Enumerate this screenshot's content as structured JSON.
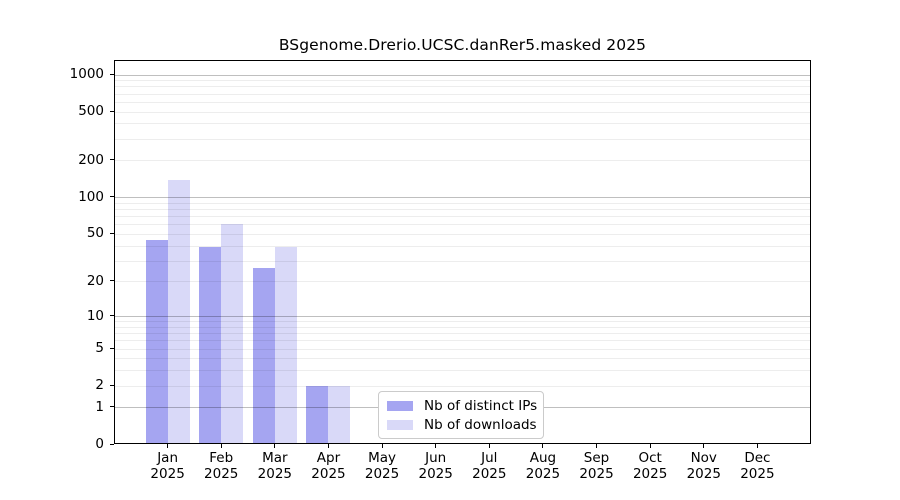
{
  "chart_data": {
    "type": "bar",
    "title": "BSgenome.Drerio.UCSC.danRer5.masked 2025",
    "categories": [
      "Jan",
      "Feb",
      "Mar",
      "Apr",
      "May",
      "Jun",
      "Jul",
      "Aug",
      "Sep",
      "Oct",
      "Nov",
      "Dec"
    ],
    "year_label": "2025",
    "series": [
      {
        "name": "Nb of distinct IPs",
        "color": "#a5a5f1",
        "values": [
          45,
          39,
          26,
          2,
          0,
          0,
          0,
          0,
          0,
          0,
          0,
          0
        ]
      },
      {
        "name": "Nb of downloads",
        "color": "#d9d9f8",
        "values": [
          140,
          61,
          39,
          2,
          0,
          0,
          0,
          0,
          0,
          0,
          0,
          0
        ]
      }
    ],
    "y_ticks": [
      0,
      1,
      2,
      5,
      10,
      20,
      50,
      100,
      200,
      500,
      1000
    ],
    "y_scale": "log1p",
    "ylim": [
      0,
      1000
    ],
    "grid": true,
    "legend_position": "inside-bottom-center"
  },
  "colors": {
    "bar_distinct_ips": "#a5a5f1",
    "bar_downloads": "#d9d9f8",
    "grid_major": "#c0c0c0",
    "grid_minor": "#ededed",
    "frame": "#000000",
    "legend_border": "#cbcbcb",
    "background": "#ffffff"
  }
}
